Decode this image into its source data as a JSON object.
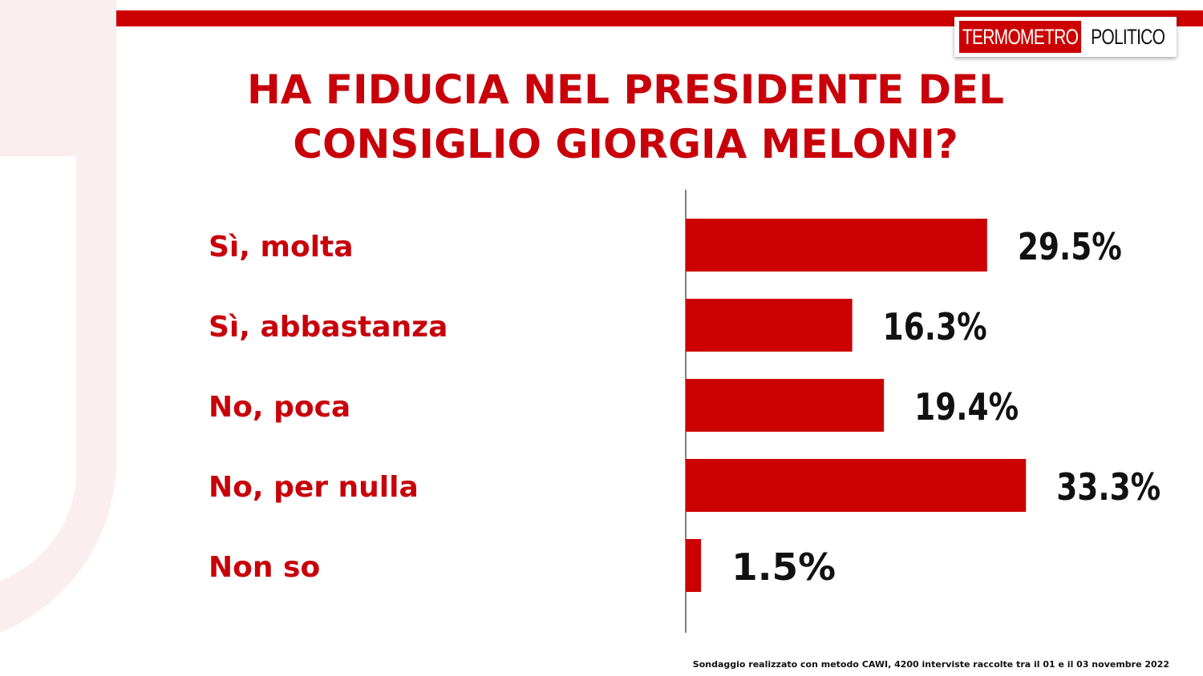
{
  "logo": {
    "part1": "TERMOMETRO",
    "part2": "POLITICO"
  },
  "title": "HA FIDUCIA NEL PRESIDENTE DEL\nCONSIGLIO GIORGIA MELONI?",
  "footnote": "Sondaggio realizzato con metodo CAWI, 4200 interviste raccolte tra il 01 e il 03 novembre 2022",
  "colors": {
    "accent": "#cc0000",
    "title": "#c8000a",
    "value_text": "#111111"
  },
  "chart_data": {
    "type": "bar",
    "orientation": "horizontal",
    "categories": [
      "Sì, molta",
      "Sì, abbastanza",
      "No, poca",
      "No, per nulla",
      "Non so"
    ],
    "values": [
      29.5,
      16.3,
      19.4,
      33.3,
      1.5
    ],
    "value_labels": [
      "29.5%",
      "16.3%",
      "19.4%",
      "33.3%",
      "1.5%"
    ],
    "unit": "%",
    "xlim": [
      0,
      35
    ],
    "grid": false,
    "legend": "none"
  }
}
